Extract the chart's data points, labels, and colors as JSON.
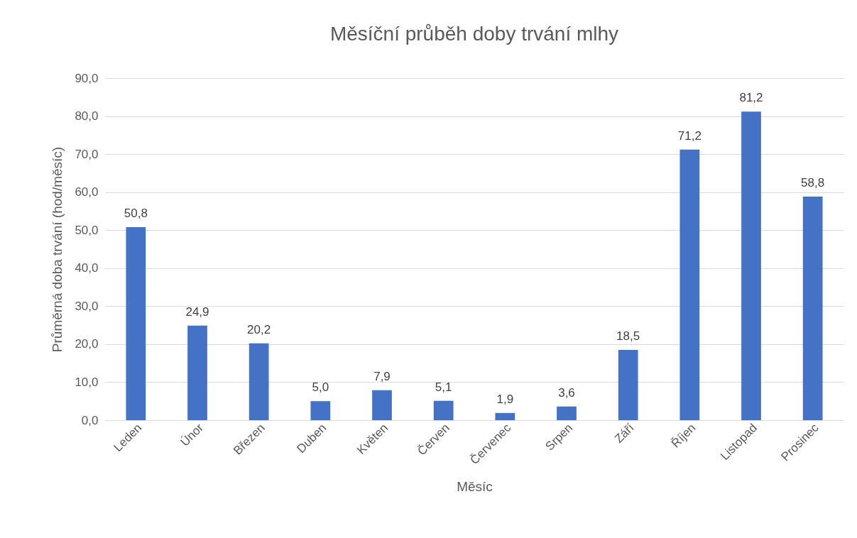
{
  "chart_data": {
    "type": "bar",
    "title": "Měsíční průběh doby trvání mlhy",
    "xlabel": "Měsíc",
    "ylabel": "Průměrná doba trvání (hod/měsíc)",
    "categories": [
      "Leden",
      "Únor",
      "Březen",
      "Duben",
      "Květen",
      "Červen",
      "Červenec",
      "Srpen",
      "Září",
      "Říjen",
      "Listopad",
      "Prosinec"
    ],
    "values": [
      50.8,
      24.9,
      20.2,
      5.0,
      7.9,
      5.1,
      1.9,
      3.6,
      18.5,
      71.2,
      81.2,
      58.8
    ],
    "value_labels": [
      "50,8",
      "24,9",
      "20,2",
      "5,0",
      "7,9",
      "5,1",
      "1,9",
      "3,6",
      "18,5",
      "71,2",
      "81,2",
      "58,8"
    ],
    "color": "#4472c4",
    "ylim": [
      0,
      90
    ],
    "yticks": [
      {
        "value": 0,
        "label": "0,0"
      },
      {
        "value": 10,
        "label": "10,0"
      },
      {
        "value": 20,
        "label": "20,0"
      },
      {
        "value": 30,
        "label": "30,0"
      },
      {
        "value": 40,
        "label": "40,0"
      },
      {
        "value": 50,
        "label": "50,0"
      },
      {
        "value": 60,
        "label": "60,0"
      },
      {
        "value": 70,
        "label": "70,0"
      },
      {
        "value": 80,
        "label": "80,0"
      },
      {
        "value": 90,
        "label": "90,0"
      }
    ],
    "grid": "y"
  }
}
